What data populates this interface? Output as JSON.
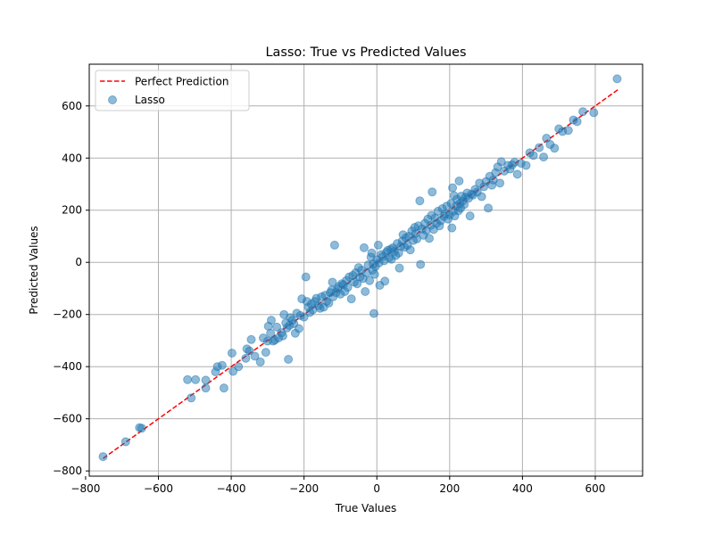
{
  "chart_data": {
    "type": "scatter",
    "title": "Lasso: True vs Predicted Values",
    "xlabel": "True Values",
    "ylabel": "Predicted Values",
    "xlim": [
      -790,
      730
    ],
    "ylim": [
      -820,
      760
    ],
    "xticks": [
      -800,
      -600,
      -400,
      -200,
      0,
      200,
      400,
      600
    ],
    "yticks": [
      -800,
      -600,
      -400,
      -200,
      0,
      200,
      400,
      600
    ],
    "xtick_labels": [
      "−800",
      "−600",
      "−400",
      "−200",
      "0",
      "200",
      "400",
      "600"
    ],
    "ytick_labels": [
      "−800",
      "−600",
      "−400",
      "−200",
      "0",
      "200",
      "400",
      "600"
    ],
    "grid": true,
    "legend_position": "upper-left",
    "legend": [
      {
        "label": "Perfect Prediction",
        "kind": "dashed-line",
        "color": "#ff0000"
      },
      {
        "label": "Lasso",
        "kind": "marker",
        "color": "#1f77b4"
      }
    ],
    "reference_line": {
      "label": "Perfect Prediction",
      "x": [
        -752,
        662
      ],
      "y": [
        -752,
        662
      ],
      "color": "#ff0000",
      "style": "dashed"
    },
    "series": [
      {
        "name": "Lasso",
        "color": "#1f77b4",
        "alpha": 0.5,
        "points": [
          [
            -752,
            -745
          ],
          [
            -690,
            -688
          ],
          [
            -652,
            -634
          ],
          [
            -646,
            -636
          ],
          [
            -520,
            -450
          ],
          [
            -510,
            -520
          ],
          [
            -498,
            -450
          ],
          [
            -470,
            -482
          ],
          [
            -470,
            -452
          ],
          [
            -443,
            -420
          ],
          [
            -438,
            -400
          ],
          [
            -425,
            -395
          ],
          [
            -420,
            -482
          ],
          [
            -398,
            -348
          ],
          [
            -395,
            -418
          ],
          [
            -380,
            -400
          ],
          [
            -360,
            -368
          ],
          [
            -357,
            -332
          ],
          [
            -350,
            -340
          ],
          [
            -345,
            -296
          ],
          [
            -335,
            -360
          ],
          [
            -320,
            -382
          ],
          [
            -312,
            -290
          ],
          [
            -305,
            -345
          ],
          [
            -300,
            -302
          ],
          [
            -298,
            -245
          ],
          [
            -292,
            -272
          ],
          [
            -290,
            -222
          ],
          [
            -285,
            -302
          ],
          [
            -280,
            -298
          ],
          [
            -275,
            -248
          ],
          [
            -270,
            -290
          ],
          [
            -262,
            -270
          ],
          [
            -258,
            -282
          ],
          [
            -255,
            -200
          ],
          [
            -250,
            -232
          ],
          [
            -247,
            -252
          ],
          [
            -243,
            -372
          ],
          [
            -240,
            -242
          ],
          [
            -238,
            -212
          ],
          [
            -232,
            -222
          ],
          [
            -228,
            -235
          ],
          [
            -224,
            -272
          ],
          [
            -220,
            -195
          ],
          [
            -214,
            -254
          ],
          [
            -210,
            -204
          ],
          [
            -206,
            -140
          ],
          [
            -200,
            -210
          ],
          [
            -195,
            -56
          ],
          [
            -192,
            -150
          ],
          [
            -188,
            -172
          ],
          [
            -184,
            -192
          ],
          [
            -180,
            -160
          ],
          [
            -176,
            -182
          ],
          [
            -170,
            -150
          ],
          [
            -166,
            -138
          ],
          [
            -160,
            -166
          ],
          [
            -156,
            -176
          ],
          [
            -152,
            -132
          ],
          [
            -146,
            -172
          ],
          [
            -142,
            -126
          ],
          [
            -138,
            -150
          ],
          [
            -132,
            -156
          ],
          [
            -128,
            -116
          ],
          [
            -124,
            -106
          ],
          [
            -122,
            -76
          ],
          [
            -120,
            -132
          ],
          [
            -116,
            66
          ],
          [
            -112,
            -116
          ],
          [
            -108,
            -102
          ],
          [
            -104,
            -92
          ],
          [
            -100,
            -122
          ],
          [
            -96,
            -82
          ],
          [
            -92,
            -86
          ],
          [
            -88,
            -112
          ],
          [
            -84,
            -70
          ],
          [
            -80,
            -96
          ],
          [
            -76,
            -56
          ],
          [
            -70,
            -140
          ],
          [
            -66,
            -50
          ],
          [
            -62,
            -76
          ],
          [
            -58,
            -40
          ],
          [
            -54,
            -82
          ],
          [
            -50,
            -20
          ],
          [
            -46,
            -56
          ],
          [
            -42,
            -30
          ],
          [
            -38,
            -62
          ],
          [
            -35,
            56
          ],
          [
            -32,
            -112
          ],
          [
            -28,
            -40
          ],
          [
            -24,
            -10
          ],
          [
            -20,
            -70
          ],
          [
            -16,
            20
          ],
          [
            -14,
            36
          ],
          [
            -12,
            -30
          ],
          [
            -10,
            -6
          ],
          [
            -8,
            -196
          ],
          [
            -6,
            -46
          ],
          [
            -4,
            -16
          ],
          [
            0,
            10
          ],
          [
            4,
            66
          ],
          [
            6,
            -2
          ],
          [
            8,
            -88
          ],
          [
            12,
            30
          ],
          [
            16,
            22
          ],
          [
            20,
            6
          ],
          [
            22,
            -72
          ],
          [
            26,
            38
          ],
          [
            30,
            46
          ],
          [
            34,
            18
          ],
          [
            38,
            50
          ],
          [
            40,
            12
          ],
          [
            44,
            56
          ],
          [
            48,
            42
          ],
          [
            52,
            26
          ],
          [
            56,
            72
          ],
          [
            60,
            36
          ],
          [
            62,
            -22
          ],
          [
            66,
            62
          ],
          [
            70,
            82
          ],
          [
            72,
            106
          ],
          [
            76,
            58
          ],
          [
            80,
            94
          ],
          [
            84,
            66
          ],
          [
            88,
            100
          ],
          [
            92,
            48
          ],
          [
            96,
            120
          ],
          [
            100,
            84
          ],
          [
            104,
            134
          ],
          [
            106,
            110
          ],
          [
            110,
            90
          ],
          [
            114,
            140
          ],
          [
            118,
            236
          ],
          [
            120,
            -8
          ],
          [
            124,
            128
          ],
          [
            128,
            104
          ],
          [
            132,
            150
          ],
          [
            136,
            122
          ],
          [
            140,
            166
          ],
          [
            144,
            92
          ],
          [
            148,
            142
          ],
          [
            150,
            180
          ],
          [
            152,
            270
          ],
          [
            156,
            126
          ],
          [
            160,
            170
          ],
          [
            164,
            150
          ],
          [
            168,
            196
          ],
          [
            172,
            140
          ],
          [
            176,
            160
          ],
          [
            180,
            206
          ],
          [
            184,
            176
          ],
          [
            188,
            186
          ],
          [
            192,
            216
          ],
          [
            196,
            166
          ],
          [
            200,
            182
          ],
          [
            204,
            226
          ],
          [
            206,
            132
          ],
          [
            208,
            286
          ],
          [
            210,
            196
          ],
          [
            212,
            256
          ],
          [
            214,
            178
          ],
          [
            218,
            216
          ],
          [
            220,
            242
          ],
          [
            224,
            198
          ],
          [
            226,
            312
          ],
          [
            228,
            226
          ],
          [
            230,
            208
          ],
          [
            232,
            254
          ],
          [
            236,
            236
          ],
          [
            240,
            222
          ],
          [
            244,
            250
          ],
          [
            248,
            266
          ],
          [
            252,
            246
          ],
          [
            256,
            178
          ],
          [
            260,
            262
          ],
          [
            264,
            258
          ],
          [
            270,
            280
          ],
          [
            276,
            270
          ],
          [
            282,
            304
          ],
          [
            288,
            252
          ],
          [
            294,
            290
          ],
          [
            300,
            310
          ],
          [
            306,
            208
          ],
          [
            310,
            330
          ],
          [
            316,
            296
          ],
          [
            320,
            316
          ],
          [
            326,
            344
          ],
          [
            332,
            366
          ],
          [
            338,
            304
          ],
          [
            342,
            386
          ],
          [
            350,
            350
          ],
          [
            360,
            372
          ],
          [
            366,
            358
          ],
          [
            372,
            374
          ],
          [
            378,
            384
          ],
          [
            386,
            338
          ],
          [
            396,
            380
          ],
          [
            410,
            372
          ],
          [
            420,
            420
          ],
          [
            430,
            410
          ],
          [
            446,
            440
          ],
          [
            458,
            404
          ],
          [
            466,
            476
          ],
          [
            476,
            452
          ],
          [
            488,
            438
          ],
          [
            500,
            512
          ],
          [
            510,
            502
          ],
          [
            526,
            506
          ],
          [
            540,
            546
          ],
          [
            550,
            540
          ],
          [
            566,
            578
          ],
          [
            596,
            574
          ],
          [
            660,
            704
          ]
        ]
      }
    ]
  }
}
